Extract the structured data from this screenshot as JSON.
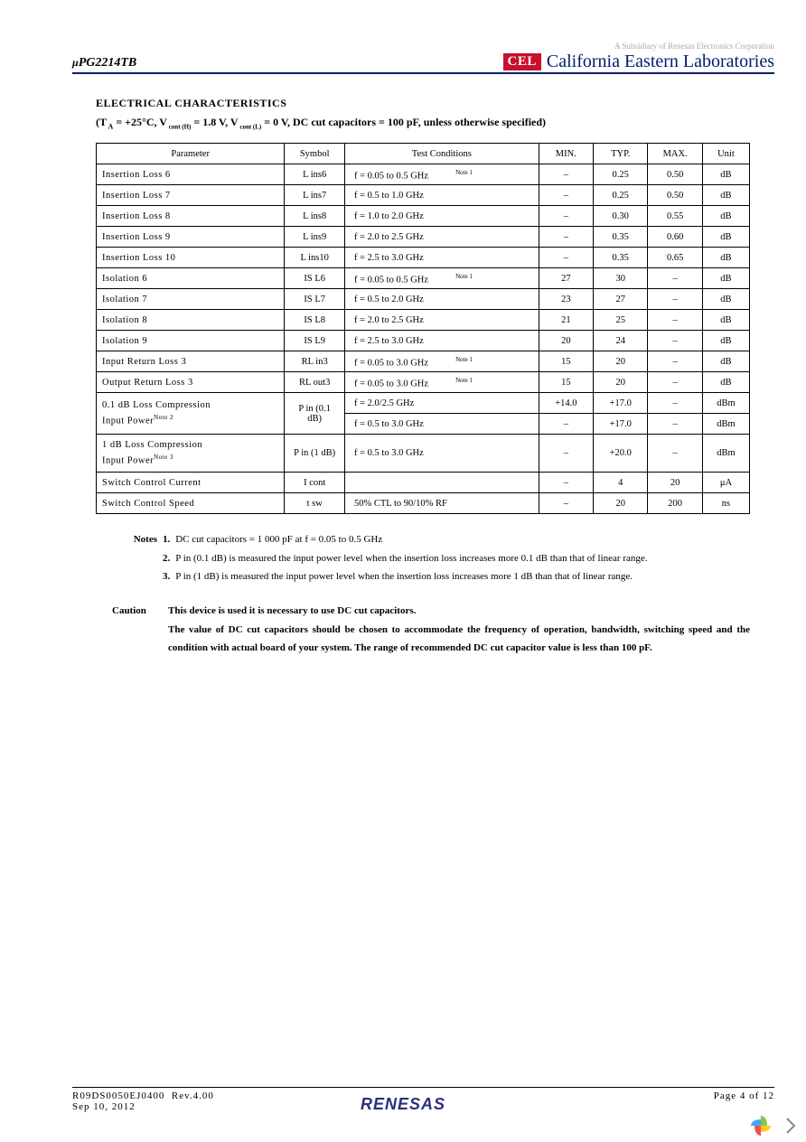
{
  "header": {
    "part_number_prefix": "μ",
    "part_number": "PG2214TB",
    "subsidiary_note": "A Subsidiary of Renesas Electronics Corporation",
    "cel_logo_text": "CEL",
    "cel_full": "California Eastern Laboratories"
  },
  "section": {
    "title": "ELECTRICAL  CHARACTERISTICS",
    "conditions_line": "(T A = +25°C, V cont (H)  = 1.8 V, V cont (L)  = 0 V, DC cut capacitors = 100 pF, unless otherwise specified)",
    "table": {
      "headers": [
        "Parameter",
        "Symbol",
        "Test Conditions",
        "MIN.",
        "TYP.",
        "MAX.",
        "Unit"
      ],
      "rows": [
        {
          "param": "Insertion Loss 6",
          "sym": "L ins6",
          "cond": "f = 0.05 to 0.5 GHz",
          "note": "Note 1",
          "min": "–",
          "typ": "0.25",
          "max": "0.50",
          "unit": "dB"
        },
        {
          "param": "Insertion Loss 7",
          "sym": "L ins7",
          "cond": "f = 0.5 to 1.0 GHz",
          "note": "",
          "min": "–",
          "typ": "0.25",
          "max": "0.50",
          "unit": "dB"
        },
        {
          "param": "Insertion Loss 8",
          "sym": "L ins8",
          "cond": "f = 1.0 to 2.0 GHz",
          "note": "",
          "min": "–",
          "typ": "0.30",
          "max": "0.55",
          "unit": "dB"
        },
        {
          "param": "Insertion Loss 9",
          "sym": "L ins9",
          "cond": "f = 2.0 to 2.5 GHz",
          "note": "",
          "min": "–",
          "typ": "0.35",
          "max": "0.60",
          "unit": "dB"
        },
        {
          "param": "Insertion Loss 10",
          "sym": "L ins10",
          "cond": "f = 2.5 to 3.0 GHz",
          "note": "",
          "min": "–",
          "typ": "0.35",
          "max": "0.65",
          "unit": "dB"
        },
        {
          "param": "Isolation 6",
          "sym": "IS L6",
          "cond": "f = 0.05 to 0.5 GHz",
          "note": "Note 1",
          "min": "27",
          "typ": "30",
          "max": "–",
          "unit": "dB"
        },
        {
          "param": "Isolation 7",
          "sym": "IS L7",
          "cond": "f = 0.5 to 2.0 GHz",
          "note": "",
          "min": "23",
          "typ": "27",
          "max": "–",
          "unit": "dB"
        },
        {
          "param": "Isolation 8",
          "sym": "IS L8",
          "cond": "f = 2.0 to 2.5 GHz",
          "note": "",
          "min": "21",
          "typ": "25",
          "max": "–",
          "unit": "dB"
        },
        {
          "param": "Isolation 9",
          "sym": "IS L9",
          "cond": "f = 2.5 to 3.0 GHz",
          "note": "",
          "min": "20",
          "typ": "24",
          "max": "–",
          "unit": "dB"
        },
        {
          "param": "Input Return Loss 3",
          "sym": "RL in3",
          "cond": "f = 0.05 to 3.0 GHz",
          "note": "Note 1",
          "min": "15",
          "typ": "20",
          "max": "–",
          "unit": "dB"
        },
        {
          "param": "Output Return Loss 3",
          "sym": "RL out3",
          "cond": "f = 0.05 to 3.0 GHz",
          "note": "Note 1",
          "min": "15",
          "typ": "20",
          "max": "–",
          "unit": "dB"
        },
        {
          "param": "0.1 dB Loss Compression",
          "param2": "Input Power",
          "pnote": "Note 2",
          "sym": "P in (0.1 dB)",
          "cond": "f = 2.0/2.5 GHz",
          "cond2": "f = 0.5 to 3.0 GHz",
          "min": "+14.0",
          "typ": "+17.0",
          "max": "–",
          "unit": "dBm",
          "min2": "–",
          "typ2": "+17.0",
          "max2": "–",
          "unit2": "dBm",
          "double": true
        },
        {
          "param": "1 dB Loss Compression",
          "param2": "Input Power",
          "pnote": "Note 3",
          "sym": "P in (1 dB)",
          "cond": "f = 0.5 to 3.0 GHz",
          "note": "",
          "min": "–",
          "typ": "+20.0",
          "max": "–",
          "unit": "dBm"
        },
        {
          "param": "Switch Control Current",
          "sym": "I cont",
          "cond": "",
          "note": "",
          "min": "–",
          "typ": "4",
          "max": "20",
          "unit": "μA"
        },
        {
          "param": "Switch Control Speed",
          "sym": "t sw",
          "cond": "50% CTL to 90/10% RF",
          "note": "",
          "min": "–",
          "typ": "20",
          "max": "200",
          "unit": "ns"
        }
      ]
    }
  },
  "notes": {
    "label": "Notes",
    "items": [
      {
        "n": "1.",
        "text": "DC cut capacitors = 1 000 pF at f = 0.05 to 0.5 GHz"
      },
      {
        "n": "2.",
        "text": "P in (0.1 dB) is measured the input power level when the insertion loss increases more 0.1 dB than that of linear range."
      },
      {
        "n": "3.",
        "text": "P in (1 dB) is measured the input power level when the insertion loss increases more 1 dB than that of linear range."
      }
    ]
  },
  "caution": {
    "label": "Caution",
    "line1": "This device is used it is necessary to use DC cut capacitors.",
    "body": "The value of DC cut capacitors should be chosen to accommodate the frequency of operation, bandwidth, switching speed and the condition with actual board of your system. The range of recommended DC cut capacitor value is less than 100 pF."
  },
  "footer": {
    "doc_id": "R09DS0050EJ0400",
    "rev": "Rev.4.00",
    "date": "Sep 10, 2012",
    "page": "Page 4 of 12",
    "brand": "RENESAS"
  },
  "colors": {
    "header_rule": "#001e6c",
    "cel_red": "#c8102e",
    "renesas_blue": "#2b2f7e"
  }
}
